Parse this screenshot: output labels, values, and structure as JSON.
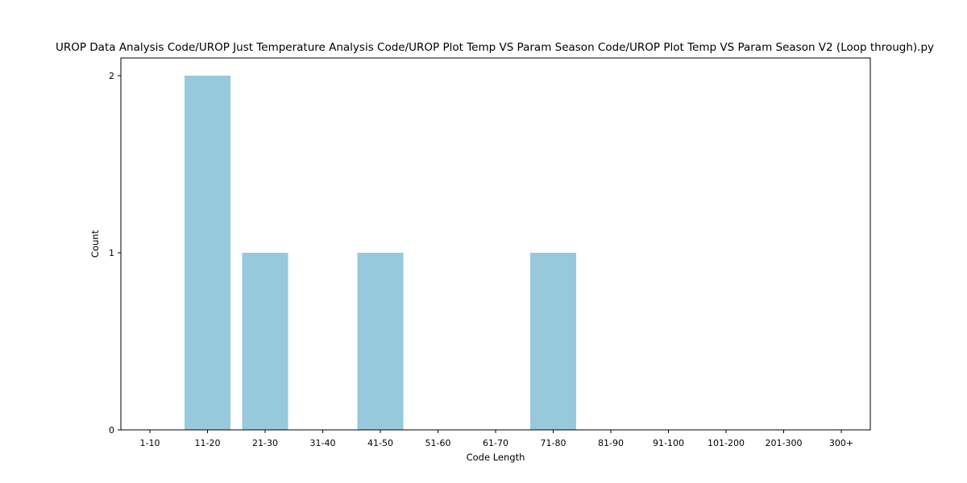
{
  "chart_data": {
    "type": "bar",
    "title": "UROP Data Analysis Code/UROP Just Temperature Analysis Code/UROP Plot Temp VS Param Season Code/UROP Plot Temp VS Param Season V2 (Loop through).py",
    "xlabel": "Code Length",
    "ylabel": "Count",
    "categories": [
      "1-10",
      "11-20",
      "21-30",
      "31-40",
      "41-50",
      "51-60",
      "61-70",
      "71-80",
      "81-90",
      "91-100",
      "101-200",
      "201-300",
      "300+"
    ],
    "values": [
      0,
      2,
      1,
      0,
      1,
      0,
      0,
      1,
      0,
      0,
      0,
      0,
      0
    ],
    "ylim": [
      0,
      2
    ],
    "yticks": [
      0,
      1,
      2
    ],
    "grid": false,
    "bar_color": "#96c9dc"
  }
}
